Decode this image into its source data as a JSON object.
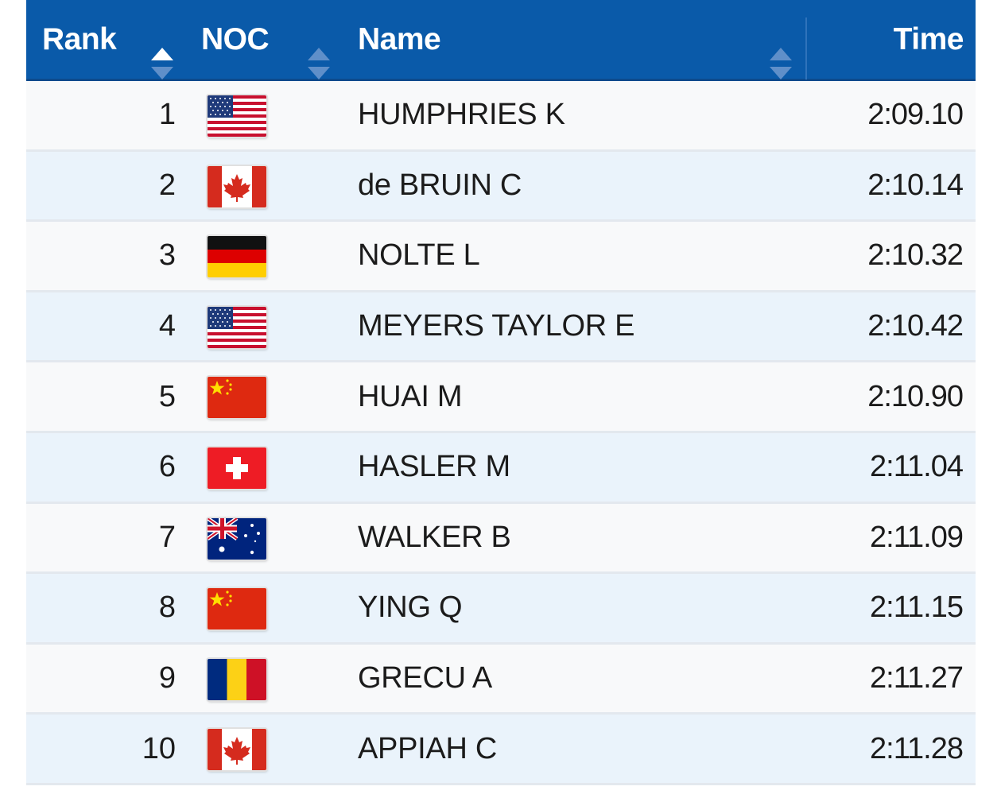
{
  "table": {
    "columns": [
      {
        "key": "rank",
        "label": "Rank",
        "sortable": true,
        "sort_state": "ascending"
      },
      {
        "key": "noc",
        "label": "NOC",
        "sortable": true,
        "sort_state": "none"
      },
      {
        "key": "name",
        "label": "Name",
        "sortable": true,
        "sort_state": "none"
      },
      {
        "key": "time",
        "label": "Time",
        "sortable": false
      }
    ],
    "rows": [
      {
        "rank": "1",
        "flag": "usa-flag-icon",
        "name": "HUMPHRIES K",
        "time": "2:09.10"
      },
      {
        "rank": "2",
        "flag": "canada-flag-icon",
        "name": "de BRUIN C",
        "time": "2:10.14"
      },
      {
        "rank": "3",
        "flag": "germany-flag-icon",
        "name": "NOLTE L",
        "time": "2:10.32"
      },
      {
        "rank": "4",
        "flag": "usa-flag-icon",
        "name": "MEYERS TAYLOR E",
        "time": "2:10.42"
      },
      {
        "rank": "5",
        "flag": "china-flag-icon",
        "name": "HUAI M",
        "time": "2:10.90"
      },
      {
        "rank": "6",
        "flag": "switzerland-flag-icon",
        "name": "HASLER M",
        "time": "2:11.04"
      },
      {
        "rank": "7",
        "flag": "australia-flag-icon",
        "name": "WALKER B",
        "time": "2:11.09"
      },
      {
        "rank": "8",
        "flag": "china-flag-icon",
        "name": "YING Q",
        "time": "2:11.15"
      },
      {
        "rank": "9",
        "flag": "romania-flag-icon",
        "name": "GRECU A",
        "time": "2:11.27"
      },
      {
        "rank": "10",
        "flag": "canada-flag-icon",
        "name": "APPIAH C",
        "time": "2:11.28"
      }
    ]
  },
  "colors": {
    "header_bg": "#0a5aa9",
    "row_odd": "#f8f9fa",
    "row_even": "#eaf3fb"
  }
}
